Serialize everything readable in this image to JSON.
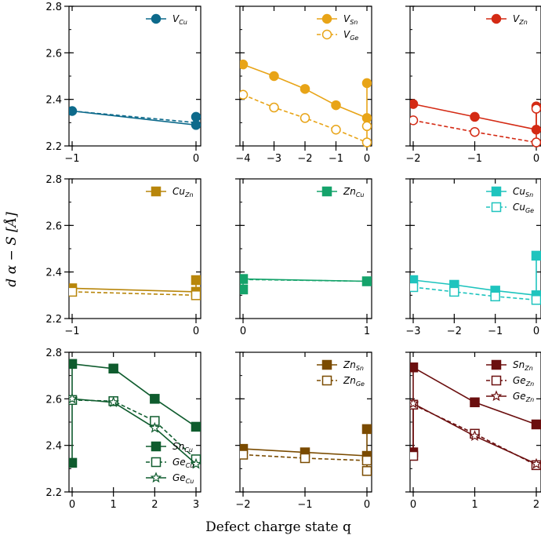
{
  "figure": {
    "xlabel": "Defect charge state q",
    "ylabel": "d α − S [Å]"
  },
  "chart_data": [
    {
      "type": "line",
      "ylim": [
        2.2,
        2.8
      ],
      "xlim": [
        -1,
        0
      ],
      "yticks": [
        2.2,
        2.4,
        2.6,
        2.8
      ],
      "yticklabels": [
        "2.2",
        "2.4",
        "2.6",
        "2.8"
      ],
      "xticks": [
        -1,
        0
      ],
      "xticklabels": [
        "−1",
        "0"
      ],
      "series": [
        {
          "name": "V",
          "sub": "Cu",
          "color": "#0d6a8b",
          "marker": "circle",
          "filled": true,
          "dash": false,
          "x": [
            -1,
            0
          ],
          "y": [
            2.35,
            2.29
          ],
          "extra_y": [
            2.325
          ]
        },
        {
          "name": "",
          "sub": "",
          "color": "#0d6a8b",
          "marker": "none",
          "filled": true,
          "dash": true,
          "x": [
            -1,
            0
          ],
          "y": [
            2.35,
            2.3
          ],
          "extra_y": []
        }
      ]
    },
    {
      "type": "line",
      "ylim": [
        2.2,
        2.8
      ],
      "xlim": [
        -4,
        0
      ],
      "yticks": [
        2.2,
        2.4,
        2.6,
        2.8
      ],
      "yticklabels": [
        "2.2",
        "2.4",
        "2.6",
        "2.8"
      ],
      "xticks": [
        -4,
        -3,
        -2,
        -1,
        0
      ],
      "xticklabels": [
        "−4",
        "−3",
        "−2",
        "−1",
        "0"
      ],
      "series": [
        {
          "name": "V",
          "sub": "Sn",
          "color": "#e8a417",
          "marker": "circle",
          "filled": true,
          "dash": false,
          "x": [
            -4,
            -3,
            -2,
            -1,
            0
          ],
          "y": [
            2.55,
            2.5,
            2.445,
            2.375,
            2.32
          ],
          "extra_y": [
            2.47
          ]
        },
        {
          "name": "V",
          "sub": "Ge",
          "color": "#e8a417",
          "marker": "circle",
          "filled": false,
          "dash": true,
          "x": [
            -4,
            -3,
            -2,
            -1,
            0
          ],
          "y": [
            2.42,
            2.365,
            2.32,
            2.27,
            2.215
          ],
          "extra_y": [
            2.285
          ]
        }
      ]
    },
    {
      "type": "line",
      "ylim": [
        2.2,
        2.8
      ],
      "xlim": [
        -2,
        0
      ],
      "yticks": [
        2.2,
        2.4,
        2.6,
        2.8
      ],
      "yticklabels": [
        "2.2",
        "2.4",
        "2.6",
        "2.8"
      ],
      "xticks": [
        -2,
        -1,
        0
      ],
      "xticklabels": [
        "−2",
        "−1",
        "0"
      ],
      "series": [
        {
          "name": "V",
          "sub": "Zn",
          "color": "#d42a14",
          "marker": "circle",
          "filled": true,
          "dash": false,
          "x": [
            -2,
            -1,
            0
          ],
          "y": [
            2.38,
            2.325,
            2.27
          ],
          "extra_y": [
            2.37
          ]
        },
        {
          "name": "",
          "sub": "",
          "color": "#d42a14",
          "marker": "circle",
          "filled": false,
          "dash": true,
          "x": [
            -2,
            -1,
            0
          ],
          "y": [
            2.31,
            2.26,
            2.215
          ],
          "extra_y": [
            2.36
          ]
        }
      ]
    },
    {
      "type": "line",
      "ylim": [
        2.2,
        2.8
      ],
      "xlim": [
        -1,
        0
      ],
      "yticks": [
        2.2,
        2.4,
        2.6,
        2.8
      ],
      "yticklabels": [
        "2.2",
        "2.4",
        "2.6",
        "2.8"
      ],
      "xticks": [
        -1,
        0
      ],
      "xticklabels": [
        "−1",
        "0"
      ],
      "series": [
        {
          "name": "Cu",
          "sub": "Zn",
          "color": "#b8860b",
          "marker": "square",
          "filled": true,
          "dash": false,
          "x": [
            -1,
            0
          ],
          "y": [
            2.33,
            2.315
          ],
          "extra_y": [
            2.365
          ]
        },
        {
          "name": "",
          "sub": "",
          "color": "#b8860b",
          "marker": "square",
          "filled": false,
          "dash": true,
          "x": [
            -1,
            0
          ],
          "y": [
            2.315,
            2.3
          ],
          "extra_y": []
        }
      ]
    },
    {
      "type": "line",
      "ylim": [
        2.2,
        2.8
      ],
      "xlim": [
        0,
        1
      ],
      "yticks": [
        2.2,
        2.4,
        2.6,
        2.8
      ],
      "yticklabels": [
        "2.2",
        "2.4",
        "2.6",
        "2.8"
      ],
      "xticks": [
        0,
        1
      ],
      "xticklabels": [
        "0",
        "1"
      ],
      "series": [
        {
          "name": "Zn",
          "sub": "Cu",
          "color": "#15a36b",
          "marker": "square",
          "filled": true,
          "dash": false,
          "x": [
            0,
            1
          ],
          "y": [
            2.37,
            2.36
          ],
          "extra_y": [
            2.325
          ]
        },
        {
          "name": "",
          "sub": "",
          "color": "#15a36b",
          "marker": "none",
          "filled": true,
          "dash": true,
          "x": [
            0,
            1
          ],
          "y": [
            2.368,
            2.36
          ],
          "extra_y": []
        }
      ]
    },
    {
      "type": "line",
      "ylim": [
        2.2,
        2.8
      ],
      "xlim": [
        -3,
        0
      ],
      "yticks": [
        2.2,
        2.4,
        2.6,
        2.8
      ],
      "yticklabels": [
        "2.2",
        "2.4",
        "2.6",
        "2.8"
      ],
      "xticks": [
        -3,
        -2,
        -1,
        0
      ],
      "xticklabels": [
        "−3",
        "−2",
        "−1",
        "0"
      ],
      "series": [
        {
          "name": "Cu",
          "sub": "Sn",
          "color": "#1ec4be",
          "marker": "square",
          "filled": true,
          "dash": false,
          "x": [
            -3,
            -2,
            -1,
            0
          ],
          "y": [
            2.365,
            2.345,
            2.32,
            2.3
          ],
          "extra_y": [
            2.47
          ]
        },
        {
          "name": "Cu",
          "sub": "Ge",
          "color": "#1ec4be",
          "marker": "square",
          "filled": false,
          "dash": true,
          "x": [
            -3,
            -2,
            -1,
            0
          ],
          "y": [
            2.335,
            2.315,
            2.295,
            2.28
          ],
          "extra_y": []
        }
      ]
    },
    {
      "type": "line",
      "ylim": [
        2.2,
        2.8
      ],
      "xlim": [
        0,
        3
      ],
      "yticks": [
        2.2,
        2.4,
        2.6,
        2.8
      ],
      "yticklabels": [
        "2.2",
        "2.4",
        "2.6",
        "2.8"
      ],
      "xticks": [
        0,
        1,
        2,
        3
      ],
      "xticklabels": [
        "0",
        "1",
        "2",
        "3"
      ],
      "series": [
        {
          "name": "Sn",
          "sub": "Cu",
          "color": "#0f5c2e",
          "marker": "square",
          "filled": true,
          "dash": false,
          "x": [
            0,
            1,
            2,
            3
          ],
          "y": [
            2.75,
            2.73,
            2.6,
            2.48
          ],
          "extra_y": [
            2.325
          ]
        },
        {
          "name": "Ge",
          "sub": "Cu",
          "color": "#0f5c2e",
          "marker": "square",
          "filled": false,
          "dash": true,
          "x": [
            0,
            1,
            2,
            3
          ],
          "y": [
            2.595,
            2.59,
            2.505,
            2.34
          ],
          "extra_y": []
        },
        {
          "name": "Ge",
          "sub": "Cu",
          "color": "#0f5c2e",
          "marker": "star",
          "filled": false,
          "dash": false,
          "x": [
            0,
            1,
            2,
            3
          ],
          "y": [
            2.6,
            2.585,
            2.475,
            2.32
          ],
          "extra_y": []
        }
      ]
    },
    {
      "type": "line",
      "ylim": [
        2.2,
        2.8
      ],
      "xlim": [
        -2,
        0
      ],
      "yticks": [
        2.2,
        2.4,
        2.6,
        2.8
      ],
      "yticklabels": [
        "2.2",
        "2.4",
        "2.6",
        "2.8"
      ],
      "xticks": [
        -2,
        -1,
        0
      ],
      "xticklabels": [
        "−2",
        "−1",
        "0"
      ],
      "series": [
        {
          "name": "Zn",
          "sub": "Sn",
          "color": "#7a4b00",
          "marker": "square",
          "filled": true,
          "dash": false,
          "x": [
            -2,
            -1,
            0
          ],
          "y": [
            2.385,
            2.37,
            2.355
          ],
          "extra_y": [
            2.47
          ]
        },
        {
          "name": "Zn",
          "sub": "Ge",
          "color": "#7a4b00",
          "marker": "square",
          "filled": false,
          "dash": true,
          "x": [
            -2,
            -1,
            0
          ],
          "y": [
            2.36,
            2.345,
            2.335
          ],
          "extra_y": [
            2.29
          ]
        }
      ]
    },
    {
      "type": "line",
      "ylim": [
        2.2,
        2.8
      ],
      "xlim": [
        0,
        2
      ],
      "yticks": [
        2.2,
        2.4,
        2.6,
        2.8
      ],
      "yticklabels": [
        "2.2",
        "2.4",
        "2.6",
        "2.8"
      ],
      "xticks": [
        0,
        1,
        2
      ],
      "xticklabels": [
        "0",
        "1",
        "2"
      ],
      "series": [
        {
          "name": "Sn",
          "sub": "Zn",
          "color": "#6b0f0f",
          "marker": "square",
          "filled": true,
          "dash": false,
          "x": [
            0,
            1,
            2
          ],
          "y": [
            2.735,
            2.585,
            2.49
          ],
          "extra_y": [
            2.37
          ]
        },
        {
          "name": "Ge",
          "sub": "Zn",
          "color": "#6b0f0f",
          "marker": "square",
          "filled": false,
          "dash": true,
          "x": [
            0,
            1,
            2
          ],
          "y": [
            2.575,
            2.45,
            2.315
          ],
          "extra_y": [
            2.355
          ]
        },
        {
          "name": "Ge",
          "sub": "Zn",
          "color": "#6b0f0f",
          "marker": "star",
          "filled": false,
          "dash": false,
          "x": [
            0,
            1,
            2
          ],
          "y": [
            2.58,
            2.44,
            2.32
          ],
          "extra_y": []
        }
      ]
    }
  ]
}
